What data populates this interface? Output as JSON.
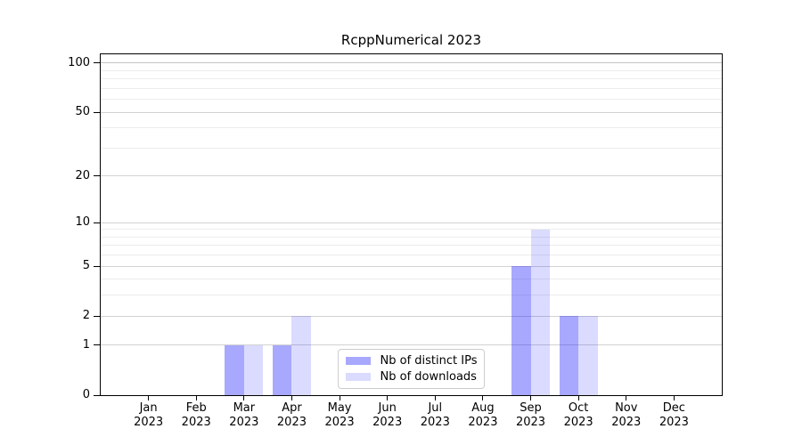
{
  "chart_data": {
    "type": "bar",
    "title": "RcppNumerical 2023",
    "xlabel": "",
    "ylabel": "",
    "categories": [
      "Jan",
      "Feb",
      "Mar",
      "Apr",
      "May",
      "Jun",
      "Jul",
      "Aug",
      "Sep",
      "Oct",
      "Nov",
      "Dec"
    ],
    "x_tick_year_line": "2023",
    "series": [
      {
        "name": "Nb of distinct IPs",
        "color": "rgba(0,0,255,0.34)",
        "values": [
          0,
          0,
          1,
          1,
          0,
          0,
          0,
          0,
          5,
          2,
          0,
          0
        ]
      },
      {
        "name": "Nb of downloads",
        "color": "rgba(0,0,255,0.14)",
        "values": [
          0,
          0,
          1,
          2,
          0,
          0,
          0,
          0,
          9,
          2,
          0,
          0
        ]
      }
    ],
    "yscale": "log1p",
    "ylim": [
      0,
      113
    ],
    "y_major_ticks": [
      0,
      1,
      2,
      5,
      10,
      20,
      50,
      100
    ],
    "y_minor_gridlines": [
      3,
      4,
      6,
      7,
      8,
      9,
      30,
      40,
      60,
      70,
      80,
      90
    ],
    "grid": true,
    "legend": {
      "position": "lower center",
      "entries": [
        "Nb of distinct IPs",
        "Nb of downloads"
      ]
    }
  },
  "colors": {
    "background": "#ffffff",
    "spine": "#000000",
    "major_grid": "#d2d2d2",
    "top_grid": "#c4c4c4",
    "minor_grid": "#ececec",
    "text": "#000000",
    "legend_border": "#cccccc"
  }
}
